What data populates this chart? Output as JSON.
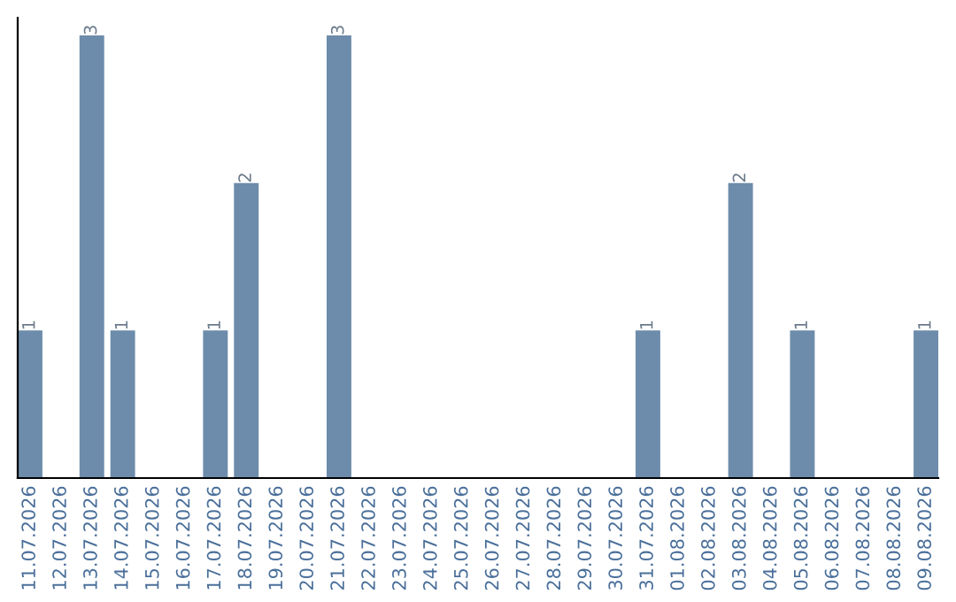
{
  "chart_data": {
    "type": "bar",
    "categories": [
      "11.07.2026",
      "12.07.2026",
      "13.07.2026",
      "14.07.2026",
      "15.07.2026",
      "16.07.2026",
      "17.07.2026",
      "18.07.2026",
      "19.07.2026",
      "20.07.2026",
      "21.07.2026",
      "22.07.2026",
      "23.07.2026",
      "24.07.2026",
      "25.07.2026",
      "26.07.2026",
      "27.07.2026",
      "28.07.2026",
      "29.07.2026",
      "30.07.2026",
      "31.07.2026",
      "01.08.2026",
      "02.08.2026",
      "03.08.2026",
      "04.08.2026",
      "05.08.2026",
      "06.08.2026",
      "07.08.2026",
      "08.08.2026",
      "09.08.2026"
    ],
    "values": [
      1,
      0,
      3,
      1,
      0,
      0,
      1,
      2,
      0,
      0,
      3,
      0,
      0,
      0,
      0,
      0,
      0,
      0,
      0,
      0,
      1,
      0,
      0,
      2,
      0,
      1,
      0,
      0,
      0,
      1
    ],
    "value_labels": [
      "1",
      null,
      "3",
      "1",
      null,
      null,
      "1",
      "2",
      null,
      null,
      "3",
      null,
      null,
      null,
      null,
      null,
      null,
      null,
      null,
      null,
      "1",
      null,
      null,
      "2",
      null,
      "1",
      null,
      null,
      null,
      "1"
    ],
    "color": "#6d8cab",
    "tick_labels": "x",
    "grid": false,
    "legend": false
  }
}
